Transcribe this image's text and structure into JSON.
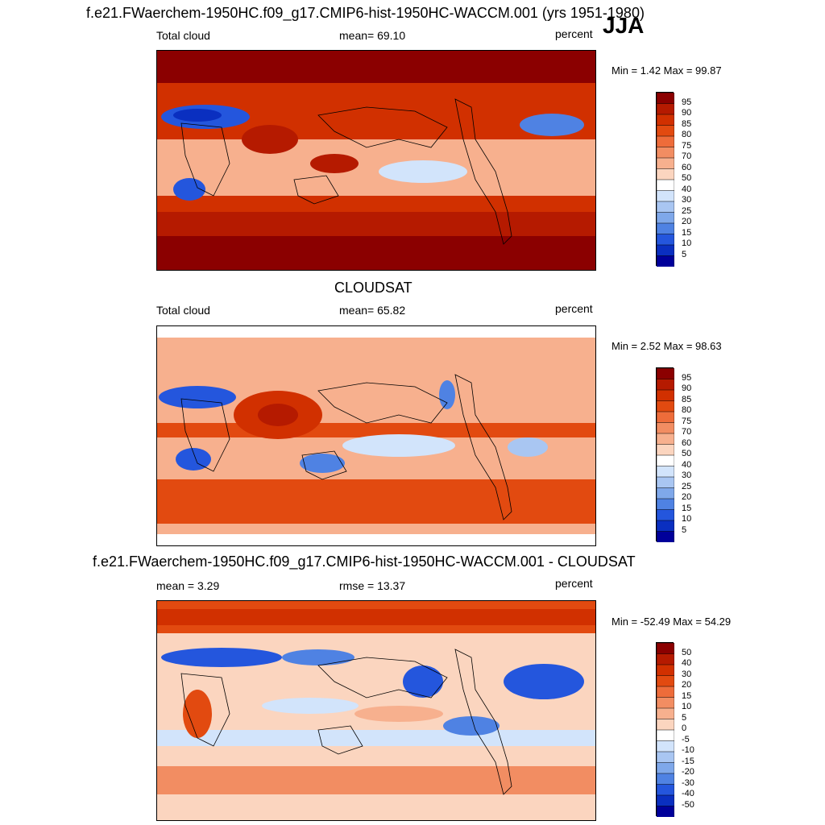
{
  "header": {
    "title": "f.e21.FWaerchem-1950HC.f09_g17.CMIP6-hist-1950HC-WACCM.001 (yrs 1951-1980)",
    "season": "JJA"
  },
  "panels": [
    {
      "id": "model",
      "subtitle": "",
      "left_label": "Total cloud",
      "center_label": "mean=  69.10",
      "right_label": "percent",
      "minmax": "Min =   1.42 Max =  99.87",
      "colorbar": {
        "ticks": [
          "95",
          "90",
          "85",
          "80",
          "75",
          "70",
          "60",
          "50",
          "40",
          "30",
          "25",
          "20",
          "15",
          "10",
          "5"
        ],
        "colors": [
          "#8b0000",
          "#b51a00",
          "#d13000",
          "#e24a10",
          "#ee6c3a",
          "#f28d62",
          "#f7b08e",
          "#fbd5bf",
          "#ffffff",
          "#d2e4fb",
          "#a9c6f2",
          "#7fa8ea",
          "#4f82e3",
          "#2456dd",
          "#0a2fc0",
          "#00009a"
        ]
      }
    },
    {
      "id": "obs",
      "subtitle": "CLOUDSAT",
      "left_label": "Total cloud",
      "center_label": "mean=  65.82",
      "right_label": "percent",
      "minmax": "Min =   2.52 Max =  98.63",
      "colorbar": {
        "ticks": [
          "95",
          "90",
          "85",
          "80",
          "75",
          "70",
          "60",
          "50",
          "40",
          "30",
          "25",
          "20",
          "15",
          "10",
          "5"
        ],
        "colors": [
          "#8b0000",
          "#b51a00",
          "#d13000",
          "#e24a10",
          "#ee6c3a",
          "#f28d62",
          "#f7b08e",
          "#fbd5bf",
          "#ffffff",
          "#d2e4fb",
          "#a9c6f2",
          "#7fa8ea",
          "#4f82e3",
          "#2456dd",
          "#0a2fc0",
          "#00009a"
        ]
      }
    },
    {
      "id": "diff",
      "subtitle": "f.e21.FWaerchem-1950HC.f09_g17.CMIP6-hist-1950HC-WACCM.001 - CLOUDSAT",
      "left_label": "mean =   3.29",
      "center_label": "rmse =  13.37",
      "right_label": "percent",
      "minmax": "Min = -52.49 Max =  54.29",
      "colorbar": {
        "ticks": [
          "50",
          "40",
          "30",
          "20",
          "15",
          "10",
          "5",
          "0",
          "-5",
          "-10",
          "-15",
          "-20",
          "-30",
          "-40",
          "-50"
        ],
        "colors": [
          "#8b0000",
          "#b51a00",
          "#d13000",
          "#e24a10",
          "#ee6c3a",
          "#f28d62",
          "#f7b08e",
          "#fbd5bf",
          "#ffffff",
          "#d2e4fb",
          "#a9c6f2",
          "#7fa8ea",
          "#4f82e3",
          "#2456dd",
          "#0a2fc0",
          "#00009a"
        ]
      }
    }
  ]
}
